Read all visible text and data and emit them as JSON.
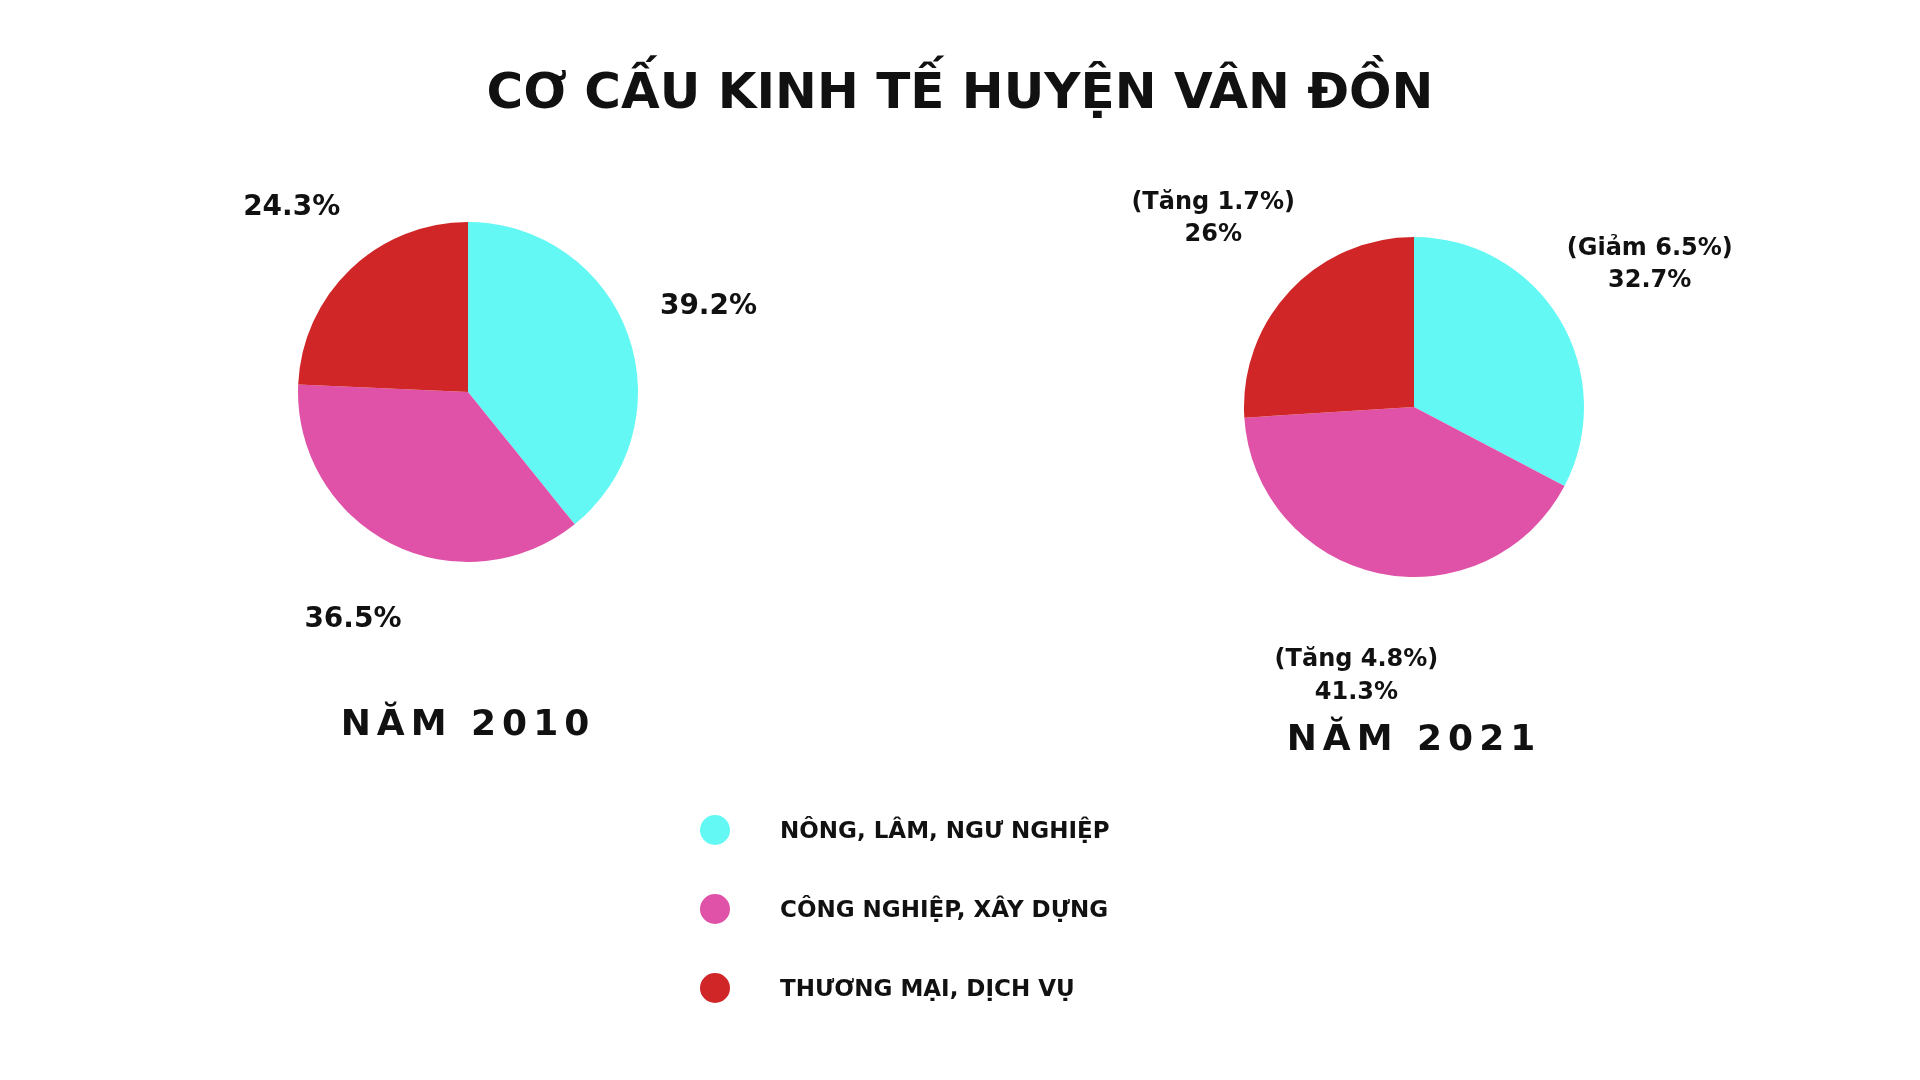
{
  "chart_data": [
    {
      "type": "pie",
      "title": "CƠ CẤU KINH TẾ HUYỆN VÂN ĐỒN",
      "xlabel": "NĂM 2010",
      "categories": [
        "NÔNG, LÂM, NGƯ NGHIỆP",
        "CÔNG NGHIỆP, XÂY DỰNG",
        "THƯƠNG MẠI, DỊCH VỤ"
      ],
      "values": [
        39.2,
        36.5,
        24.3
      ],
      "colors": [
        "#64f8f4",
        "#df52a8",
        "#d02628"
      ],
      "value_labels": [
        "39.2%",
        "36.5%",
        "24.3%"
      ],
      "legend": "bottom"
    },
    {
      "type": "pie",
      "xlabel": "NĂM 2021",
      "categories": [
        null,
        null,
        null
      ],
      "values": [
        32.7,
        41.3,
        26
      ],
      "colors": [
        "#64f8f4",
        "#df52a8",
        "#d02628"
      ],
      "value_labels": [
        "(Giảm 6.5%)\n32.7%",
        "(Tăng 4.8%)\n41.3%",
        "(Tăng 1.7%)\n26%"
      ]
    }
  ]
}
